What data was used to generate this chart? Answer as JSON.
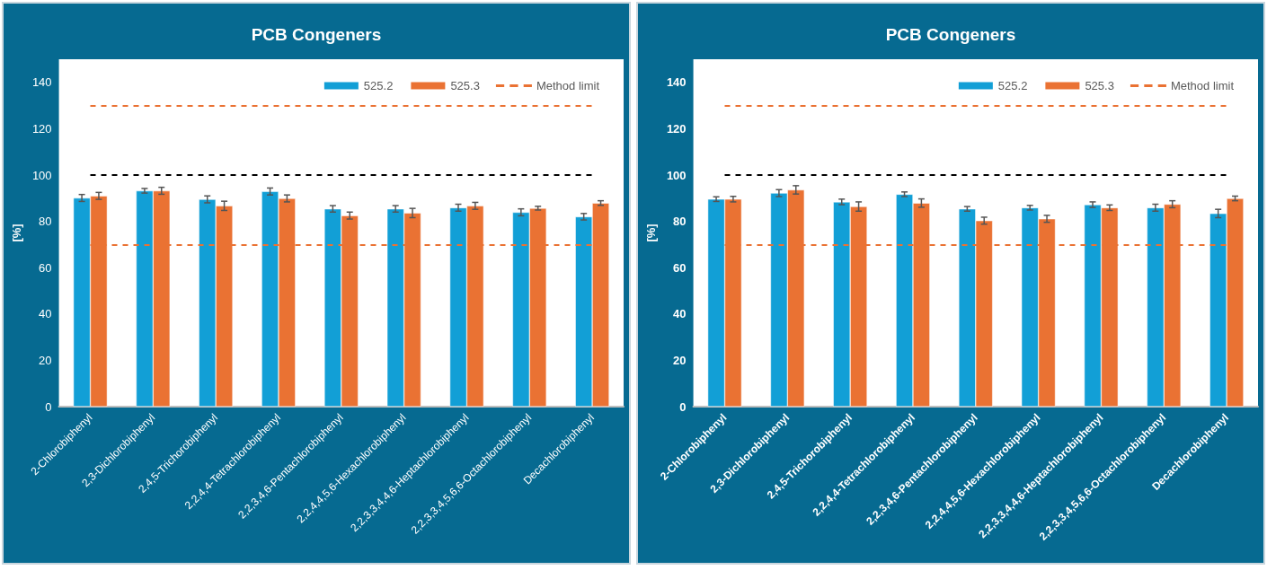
{
  "chart_data": [
    {
      "type": "bar",
      "title": "PCB Congeners",
      "ylabel": "[%]",
      "categories": [
        "2-Chlorobiphenyl",
        "2,3-Dichlorobiphenyl",
        "2,4,5-Trichorobiphenyl",
        "2,2,4,4-Tetrachlorobiphenyl",
        "2,2,3,4,6-Pentachlorobiphenyl",
        "2,2,4,4,5,6-Hexachlorobiphenyl",
        "2,2,3,3,4,4,6-Heptachlorobiphenyl",
        "2,2,3,3,4,5,6,6-Octachlorobiphenyl",
        "Decachlorobiphenyl"
      ],
      "series": [
        {
          "name": "525.2",
          "color": "#129fd6",
          "values": [
            90.1,
            93.2,
            89.5,
            92.9,
            85.4,
            85.4,
            85.9,
            83.9,
            82.0
          ],
          "errors": [
            1.5,
            1,
            1.5,
            1.5,
            1.4,
            1.4,
            1.5,
            1.5,
            1.4
          ]
        },
        {
          "name": "525.3",
          "color": "#ea7233",
          "values": [
            91.0,
            93.2,
            86.7,
            89.9,
            82.5,
            83.6,
            86.7,
            85.7,
            87.9
          ],
          "errors": [
            1.5,
            1.5,
            2,
            1.5,
            1.5,
            2,
            1.5,
            0.8,
            1
          ]
        }
      ],
      "ylim": [
        0,
        150
      ],
      "yticks": [
        0,
        20,
        40,
        60,
        80,
        100,
        120,
        140
      ],
      "grid": false,
      "legend": "top right",
      "ref_lines": [
        {
          "axis": "y",
          "value": 130,
          "label": "Method limit",
          "color": "#ea7233",
          "line_style": "dashed"
        },
        {
          "axis": "y",
          "value": 100,
          "label": null,
          "color": "#000000",
          "line_style": "dashed"
        },
        {
          "axis": "y",
          "value": 70,
          "label": null,
          "color": "#ea7233",
          "line_style": "dashed"
        }
      ]
    },
    {
      "type": "bar",
      "title": "PCB Congeners",
      "ylabel": "[%]",
      "categories": [
        "2-Chlorobiphenyl",
        "2,3-Dichlorobiphenyl",
        "2,4,5-Trichorobiphenyl",
        "2,2,4,4-Tetrachlorobiphenyl",
        "2,2,3,4,6-Pentachlorobiphenyl",
        "2,2,4,4,5,6-Hexachlorobiphenyl",
        "2,2,3,3,4,4,6-Heptachlorobiphenyl",
        "2,2,3,3,4,5,6,6-Octachlorobiphenyl",
        "Decachlorobiphenyl"
      ],
      "series": [
        {
          "name": "525.2",
          "color": "#129fd6",
          "values": [
            89.6,
            92.2,
            88.4,
            91.7,
            85.4,
            85.9,
            87.2,
            85.9,
            83.4
          ],
          "errors": [
            1,
            1.5,
            1.2,
            1,
            1,
            1,
            1.2,
            1.5,
            1.8
          ]
        },
        {
          "name": "525.3",
          "color": "#ea7233",
          "values": [
            89.6,
            93.6,
            86.4,
            87.9,
            80.3,
            81.1,
            85.9,
            87.4,
            89.9
          ],
          "errors": [
            1.2,
            1.8,
            2,
            1.8,
            1.5,
            1.5,
            1.2,
            1.5,
            1
          ]
        }
      ],
      "ylim": [
        0,
        150
      ],
      "yticks": [
        0,
        20,
        40,
        60,
        80,
        100,
        120,
        140
      ],
      "grid": false,
      "legend": "top right",
      "ref_lines": [
        {
          "axis": "y",
          "value": 130,
          "label": "Method limit",
          "color": "#ea7233",
          "line_style": "dashed"
        },
        {
          "axis": "y",
          "value": 100,
          "label": null,
          "color": "#000000",
          "line_style": "dashed"
        },
        {
          "axis": "y",
          "value": 70,
          "label": null,
          "color": "#ea7233",
          "line_style": "dashed"
        }
      ]
    }
  ]
}
